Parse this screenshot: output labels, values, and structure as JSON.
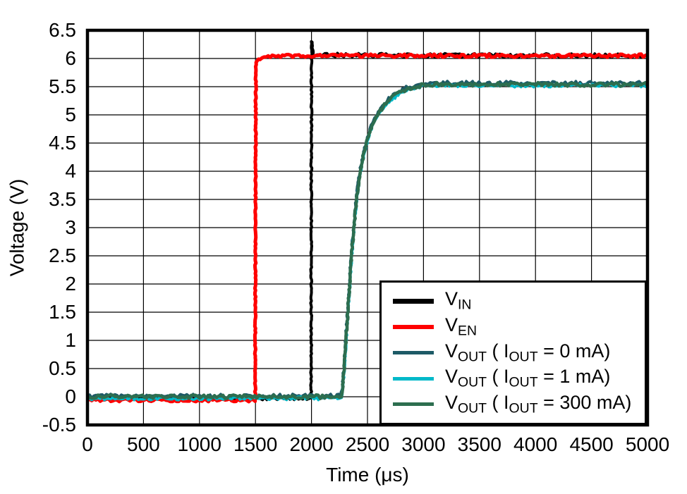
{
  "chart_data": {
    "type": "line",
    "title": "",
    "xlabel": "Time (μs)",
    "ylabel": "Voltage (V)",
    "xlim": [
      0,
      5000
    ],
    "ylim": [
      -0.5,
      6.5
    ],
    "x_tick_step": 500,
    "y_tick_step": 0.5,
    "grid": "on",
    "legend_position": "lower right",
    "xticks": [
      "0",
      "500",
      "1000",
      "1500",
      "2000",
      "2500",
      "3000",
      "3500",
      "4000",
      "4500",
      "5000"
    ],
    "xtick_values": [
      0,
      500,
      1000,
      1500,
      2000,
      2500,
      3000,
      3500,
      4000,
      4500,
      5000
    ],
    "yticks": [
      "6.5",
      "6",
      "5.5",
      "5",
      "4.5",
      "4",
      "3.5",
      "3",
      "2.5",
      "2",
      "1.5",
      "1",
      "0.5",
      "0",
      "-0.5"
    ],
    "ytick_values": [
      6.5,
      6,
      5.5,
      5,
      4.5,
      4,
      3.5,
      3,
      2.5,
      2,
      1.5,
      1,
      0.5,
      0,
      -0.5
    ],
    "series": [
      {
        "name": "VIN",
        "segments": [
          {
            "t": "V"
          },
          {
            "t": "IN",
            "sub": true
          }
        ],
        "color": "#000000",
        "width": 4,
        "noise": 2.8,
        "sample_h": 7,
        "points": [
          [
            0,
            -0.02
          ],
          [
            1997,
            -0.02
          ],
          [
            2000,
            6.3
          ],
          [
            2006,
            6.3
          ],
          [
            2014,
            6.07
          ],
          [
            2100,
            6.06
          ],
          [
            5000,
            6.05
          ]
        ]
      },
      {
        "name": "VEN",
        "segments": [
          {
            "t": "V"
          },
          {
            "t": "EN",
            "sub": true
          }
        ],
        "color": "#ff0000",
        "width": 5,
        "noise": 2.3,
        "sample_h": 6,
        "points": [
          [
            0,
            -0.06
          ],
          [
            1497,
            -0.06
          ],
          [
            1503,
            5.93
          ],
          [
            1540,
            6.0
          ],
          [
            1650,
            6.03
          ],
          [
            1850,
            6.05
          ],
          [
            5000,
            6.05
          ]
        ]
      },
      {
        "name": "VOUT_0mA",
        "segments": [
          {
            "t": "V"
          },
          {
            "t": "OUT",
            "sub": true
          },
          {
            "t": " ( I"
          },
          {
            "t": "OUT",
            "sub": true
          },
          {
            "t": " = 0 mA)"
          }
        ],
        "color": "#1D5A66",
        "width": 4,
        "noise": 3.0,
        "sample_h": 5,
        "points": [
          [
            0,
            0.01
          ],
          [
            2266,
            0.01
          ],
          [
            2286,
            0.42
          ],
          [
            2306,
            1.02
          ],
          [
            2326,
            1.62
          ],
          [
            2346,
            2.22
          ],
          [
            2366,
            2.77
          ],
          [
            2386,
            3.22
          ],
          [
            2406,
            3.62
          ],
          [
            2426,
            3.92
          ],
          [
            2451,
            4.2
          ],
          [
            2476,
            4.42
          ],
          [
            2506,
            4.64
          ],
          [
            2536,
            4.82
          ],
          [
            2566,
            4.95
          ],
          [
            2596,
            5.05
          ],
          [
            2636,
            5.16
          ],
          [
            2676,
            5.25
          ],
          [
            2716,
            5.32
          ],
          [
            2756,
            5.38
          ],
          [
            2796,
            5.43
          ],
          [
            2846,
            5.48
          ],
          [
            2896,
            5.51
          ],
          [
            2946,
            5.53
          ],
          [
            3000,
            5.55
          ],
          [
            3100,
            5.56
          ],
          [
            5000,
            5.56
          ]
        ]
      },
      {
        "name": "VOUT_1mA",
        "segments": [
          {
            "t": "V"
          },
          {
            "t": "OUT",
            "sub": true
          },
          {
            "t": " ( I"
          },
          {
            "t": "OUT",
            "sub": true
          },
          {
            "t": " = 1 mA)"
          }
        ],
        "color": "#00B9C9",
        "width": 3.5,
        "noise": 2.5,
        "sample_h": 5,
        "points": [
          [
            0,
            -0.03
          ],
          [
            2270,
            -0.03
          ],
          [
            2290,
            0.38
          ],
          [
            2310,
            0.98
          ],
          [
            2330,
            1.58
          ],
          [
            2350,
            2.18
          ],
          [
            2370,
            2.73
          ],
          [
            2390,
            3.18
          ],
          [
            2410,
            3.58
          ],
          [
            2430,
            3.88
          ],
          [
            2455,
            4.16
          ],
          [
            2480,
            4.38
          ],
          [
            2510,
            4.6
          ],
          [
            2540,
            4.78
          ],
          [
            2570,
            4.91
          ],
          [
            2600,
            5.01
          ],
          [
            2640,
            5.12
          ],
          [
            2680,
            5.21
          ],
          [
            2720,
            5.28
          ],
          [
            2760,
            5.34
          ],
          [
            2800,
            5.39
          ],
          [
            2850,
            5.44
          ],
          [
            2900,
            5.47
          ],
          [
            2950,
            5.49
          ],
          [
            3000,
            5.51
          ],
          [
            3100,
            5.52
          ],
          [
            5000,
            5.52
          ]
        ]
      },
      {
        "name": "VOUT_300mA",
        "segments": [
          {
            "t": "V"
          },
          {
            "t": "OUT",
            "sub": true
          },
          {
            "t": " ( I"
          },
          {
            "t": "OUT",
            "sub": true
          },
          {
            "t": " = 300 mA)"
          }
        ],
        "color": "#2D6E4F",
        "width": 4.5,
        "noise": 2.7,
        "sample_h": 5,
        "points": [
          [
            0,
            0
          ],
          [
            2268,
            0
          ],
          [
            2288,
            0.4
          ],
          [
            2308,
            1.0
          ],
          [
            2328,
            1.6
          ],
          [
            2348,
            2.2
          ],
          [
            2368,
            2.75
          ],
          [
            2388,
            3.2
          ],
          [
            2408,
            3.6
          ],
          [
            2428,
            3.9
          ],
          [
            2453,
            4.18
          ],
          [
            2478,
            4.4
          ],
          [
            2508,
            4.62
          ],
          [
            2538,
            4.8
          ],
          [
            2568,
            4.93
          ],
          [
            2598,
            5.03
          ],
          [
            2638,
            5.14
          ],
          [
            2678,
            5.23
          ],
          [
            2718,
            5.3
          ],
          [
            2758,
            5.36
          ],
          [
            2798,
            5.41
          ],
          [
            2848,
            5.46
          ],
          [
            2898,
            5.49
          ],
          [
            2948,
            5.51
          ],
          [
            3000,
            5.53
          ],
          [
            3100,
            5.54
          ],
          [
            5000,
            5.54
          ]
        ]
      }
    ],
    "annotations": []
  },
  "colors": {
    "background": "#ffffff",
    "grid": "#000000",
    "frame": "#000000",
    "vin": "#000000",
    "ven": "#ff0000",
    "vout_0ma": "#1D5A66",
    "vout_1ma": "#00B9C9",
    "vout_300ma": "#2D6E4F"
  }
}
